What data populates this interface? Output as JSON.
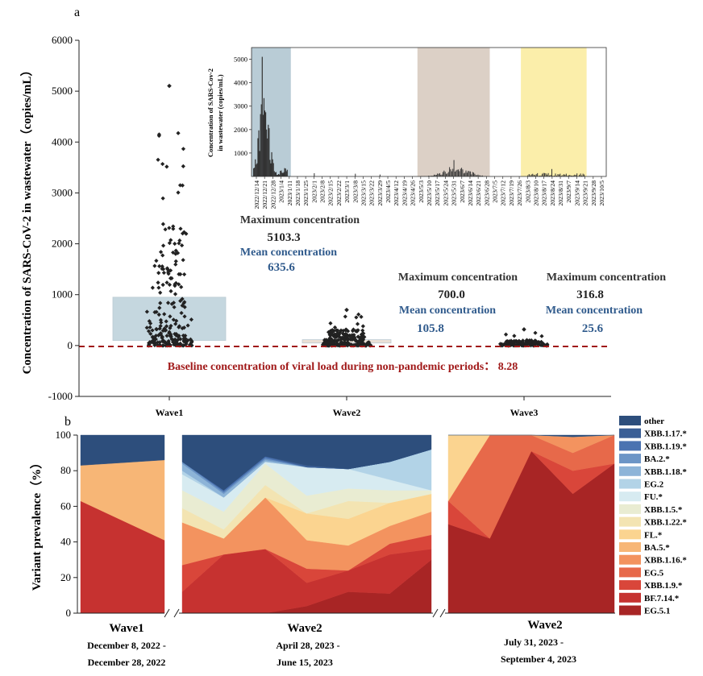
{
  "panel_a": {
    "label": "a",
    "ylabel": "Concentration of SARS-CoV-2 in wastewater（copies/mL）",
    "yticks": [
      "6000",
      "5000",
      "4000",
      "3000",
      "2000",
      "1000",
      "0",
      "-1000"
    ],
    "xticks": [
      "Wave1",
      "Wave2",
      "Wave3"
    ],
    "stats": {
      "max_label": "Maximum concentration",
      "mean_label": "Mean concentration",
      "wave1": {
        "max": "5103.3",
        "mean": "635.6"
      },
      "wave2": {
        "max": "700.0",
        "mean": "105.8"
      },
      "wave3": {
        "max": "316.8",
        "mean": "25.6"
      }
    },
    "baseline_label": "Baseline concentration of viral load during non-pandemic periods： 8.28",
    "baseline_color": "#a01818",
    "inset": {
      "ylabel_line1": "Concentration of SARS-Cov-2",
      "ylabel_line2": "in wastewater (copies/mL)",
      "yticks": [
        "5000",
        "4000",
        "3000",
        "2000",
        "1000"
      ],
      "dates": [
        "2022/12/14",
        "2022/12/21",
        "2022/12/28",
        "2023/1/4",
        "2023/1/11",
        "2023/1/18",
        "2023/1/25",
        "2023/2/1",
        "2023/2/8",
        "2023/2/15",
        "2023/2/22",
        "2023/3/1",
        "2023/3/8",
        "2023/3/15",
        "2023/3/22",
        "2023/3/29",
        "2023/4/5",
        "2023/4/12",
        "2023/4/19",
        "2023/4/26",
        "2023/5/3",
        "2023/5/10",
        "2023/5/17",
        "2023/5/24",
        "2023/5/31",
        "2023/6/7",
        "2023/6/14",
        "2023/6/21",
        "2023/6/28",
        "2023/7/5",
        "2023/7/12",
        "2023/7/19",
        "2023/7/26",
        "2023/8/3",
        "2023/8/10",
        "2023/8/17",
        "2023/8/24",
        "2023/8/31",
        "2023/9/7",
        "2023/9/14",
        "2023/9/21",
        "2023/9/28",
        "2023/10/5"
      ],
      "band_colors": [
        "#b9ccd6",
        "#dcd0c6",
        "#fbeeaa"
      ]
    }
  },
  "panel_b": {
    "label": "b",
    "ylabel": "Variant prevalence（%）",
    "yticks": [
      "100",
      "80",
      "60",
      "40",
      "20",
      "0"
    ],
    "wave_labels": [
      {
        "name": "Wave1",
        "line1": "December 8, 2022 -",
        "line2": "December 28, 2022"
      },
      {
        "name": "Wave2",
        "line1": "April 28, 2023 -",
        "line2": "June 15, 2023"
      },
      {
        "name": "Wave2",
        "line1": "July 31, 2023 -",
        "line2": "September 4, 2023"
      }
    ],
    "legend": [
      {
        "name": "other",
        "color": "#2d4e7c"
      },
      {
        "name": "XBB.1.17.*",
        "color": "#3b5f96"
      },
      {
        "name": "XBB.1.19.*",
        "color": "#4b73b1"
      },
      {
        "name": "BA.2.*",
        "color": "#6c95c6"
      },
      {
        "name": "XBB.1.18.*",
        "color": "#8db4d8"
      },
      {
        "name": "EG.2",
        "color": "#b2d3e7"
      },
      {
        "name": "FU.*",
        "color": "#d7ebf1"
      },
      {
        "name": "XBB.1.5.*",
        "color": "#e9ecd2"
      },
      {
        "name": "XBB.1.22.*",
        "color": "#f3e4b2"
      },
      {
        "name": "FL.*",
        "color": "#fbd490"
      },
      {
        "name": "BA.5.*",
        "color": "#f7b676"
      },
      {
        "name": "XBB.1.16.*",
        "color": "#f3935f"
      },
      {
        "name": "EG.5",
        "color": "#e7694a"
      },
      {
        "name": "XBB.1.9.*",
        "color": "#d9463a"
      },
      {
        "name": "BF.7.14.*",
        "color": "#c63230"
      },
      {
        "name": "EG.5.1",
        "color": "#a82525"
      }
    ]
  },
  "chart_data": [
    {
      "type": "scatter",
      "title": "",
      "xlabel": "",
      "ylabel": "Concentration of SARS-CoV-2 in wastewater (copies/mL)",
      "categories": [
        "Wave1",
        "Wave2",
        "Wave3"
      ],
      "ylim": [
        -1000,
        6000
      ],
      "series": [
        {
          "name": "Wave1",
          "max": 5103.3,
          "mean": 635.6,
          "iqr": [
            100,
            950
          ],
          "n": 220
        },
        {
          "name": "Wave2",
          "max": 700.0,
          "mean": 105.8,
          "iqr": [
            50,
            115
          ],
          "n": 240
        },
        {
          "name": "Wave3",
          "max": 316.8,
          "mean": 25.6,
          "iqr": [
            10,
            40
          ],
          "n": 120
        }
      ],
      "baseline": 8.28
    },
    {
      "type": "area",
      "title": "",
      "xlabel": "",
      "ylabel": "Variant prevalence (%)",
      "ylim": [
        0,
        100
      ],
      "series_order": [
        "EG.5.1",
        "BF.7.14.*",
        "XBB.1.9.*",
        "EG.5",
        "XBB.1.16.*",
        "BA.5.*",
        "FL.*",
        "XBB.1.22.*",
        "XBB.1.5.*",
        "FU.*",
        "EG.2",
        "XBB.1.18.*",
        "BA.2.*",
        "XBB.1.19.*",
        "XBB.1.17.*",
        "other"
      ],
      "segments": [
        {
          "name": "Wave1",
          "samples": [
            {
              "BF.7.14.*": 63,
              "BA.5.*": 20,
              "other": 17
            },
            {
              "BF.7.14.*": 41,
              "BA.5.*": 45,
              "other": 14
            }
          ]
        },
        {
          "name": "Wave2a",
          "samples": [
            {
              "XBB.1.9.*": 15,
              "BF.7.14.*": 12,
              "XBB.1.16.*": 24,
              "XBB.1.22.*": 8,
              "XBB.1.5.*": 10,
              "FU.*": 9,
              "EG.2": 2,
              "XBB.1.18.*": 4,
              "BA.2.*": 1,
              "other": 15
            },
            {
              "XBB.1.9.*": 0,
              "BF.7.14.*": 33,
              "XBB.1.16.*": 9,
              "XBB.1.22.*": 5,
              "XBB.1.5.*": 10,
              "FU.*": 8,
              "XBB.1.18.*": 2,
              "BA.2.*": 1,
              "XBB.1.19.*": 1,
              "other": 31
            },
            {
              "EG.5.1": 0,
              "BF.7.14.*": 36,
              "XBB.1.16.*": 29,
              "XBB.1.22.*": 7,
              "XBB.1.5.*": 12,
              "FU.*": 1,
              "EG.2": 0,
              "XBB.1.18.*": 1,
              "BA.2.*": 1,
              "XBB.1.19.*": 1,
              "other": 12
            },
            {
              "EG.5.1": 4,
              "BF.7.14.*": 13,
              "XBB.1.9.*": 8,
              "XBB.1.16.*": 16,
              "FL.*": 15,
              "XBB.1.5.*": 10,
              "FU.*": 16,
              "EG.2": 0,
              "XBB.1.17.*": 1,
              "other": 17
            },
            {
              "EG.5.1": 12,
              "BF.7.14.*": 12,
              "XBB.1.16.*": 14,
              "FL.*": 15,
              "XBB.1.22.*": 10,
              "XBB.1.5.*": 7,
              "FU.*": 11,
              "other": 19
            },
            {
              "EG.5.1": 11,
              "BF.7.14.*": 22,
              "XBB.1.9.*": 6,
              "XBB.1.16.*": 10,
              "FL.*": 13,
              "XBB.1.5.*": 7,
              "FU.*": 6,
              "EG.2": 10,
              "other": 15
            },
            {
              "EG.5.1": 30,
              "BF.7.14.*": 6,
              "XBB.1.9.*": 8,
              "XBB.1.16.*": 13,
              "FL.*": 10,
              "XBB.1.5.*": 2,
              "EG.2": 23,
              "other": 8
            }
          ]
        },
        {
          "name": "Wave2b",
          "samples": [
            {
              "EG.5.1": 50,
              "XBB.1.9.*": 13,
              "EG.5": 0,
              "FL.*": 37
            },
            {
              "EG.5.1": 42,
              "EG.5": 58
            },
            {
              "EG.5.1": 91,
              "EG.5": 9,
              "other": 0
            },
            {
              "EG.5.1": 67,
              "XBB.1.9.*": 13,
              "EG.5": 10,
              "XBB.1.16.*": 9,
              "other": 1
            },
            {
              "EG.5.1": 84,
              "EG.5": 16
            }
          ]
        }
      ]
    }
  ]
}
